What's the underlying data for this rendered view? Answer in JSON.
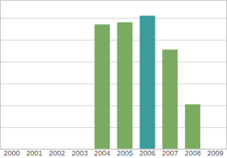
{
  "chart_data": {
    "type": "bar",
    "categories": [
      "2000",
      "2001",
      "2002",
      "2003",
      "2004",
      "2005",
      "2006",
      "2007",
      "2008",
      "2009"
    ],
    "values": [
      null,
      null,
      null,
      null,
      5.7,
      5.8,
      6.1,
      4.55,
      2.05,
      null
    ],
    "colors": [
      "#7aab61",
      "#7aab61",
      "#7aab61",
      "#7aab61",
      "#7aab61",
      "#7aab61",
      "#3a9c9c",
      "#7aab61",
      "#7aab61",
      "#7aab61"
    ],
    "ylim": [
      0,
      6.8
    ],
    "yticks": [
      0,
      1,
      2,
      3,
      4,
      5,
      6
    ],
    "grid": true,
    "tick_labels": "x"
  }
}
